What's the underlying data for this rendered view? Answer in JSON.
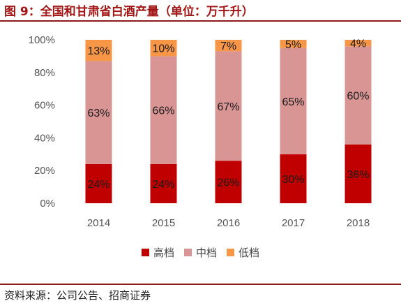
{
  "title": "图 9：全国和甘肃省白酒产量（单位：万千升）",
  "source": "资料来源：公司公告、招商证券",
  "colors": {
    "high": "#c00000",
    "mid": "#d99594",
    "low": "#f79646"
  },
  "chart_data": {
    "type": "bar",
    "stacked": true,
    "categories": [
      "2014",
      "2015",
      "2016",
      "2017",
      "2018"
    ],
    "series": [
      {
        "name": "高档",
        "values": [
          24,
          24,
          26,
          30,
          36
        ],
        "labels": [
          "24%",
          "24%",
          "26%",
          "30%",
          "36%"
        ],
        "color": "#c00000"
      },
      {
        "name": "中档",
        "values": [
          63,
          66,
          67,
          65,
          60
        ],
        "labels": [
          "63%",
          "66%",
          "67%",
          "65%",
          "60%"
        ],
        "color": "#d99594"
      },
      {
        "name": "低档",
        "values": [
          13,
          10,
          7,
          5,
          4
        ],
        "labels": [
          "13%",
          "10%",
          "7%",
          "5%",
          "4%"
        ],
        "color": "#f79646"
      }
    ],
    "ylim": [
      0,
      100
    ],
    "yticks": [
      "0%",
      "20%",
      "40%",
      "60%",
      "80%",
      "100%"
    ],
    "grid": false,
    "legend_position": "bottom"
  }
}
